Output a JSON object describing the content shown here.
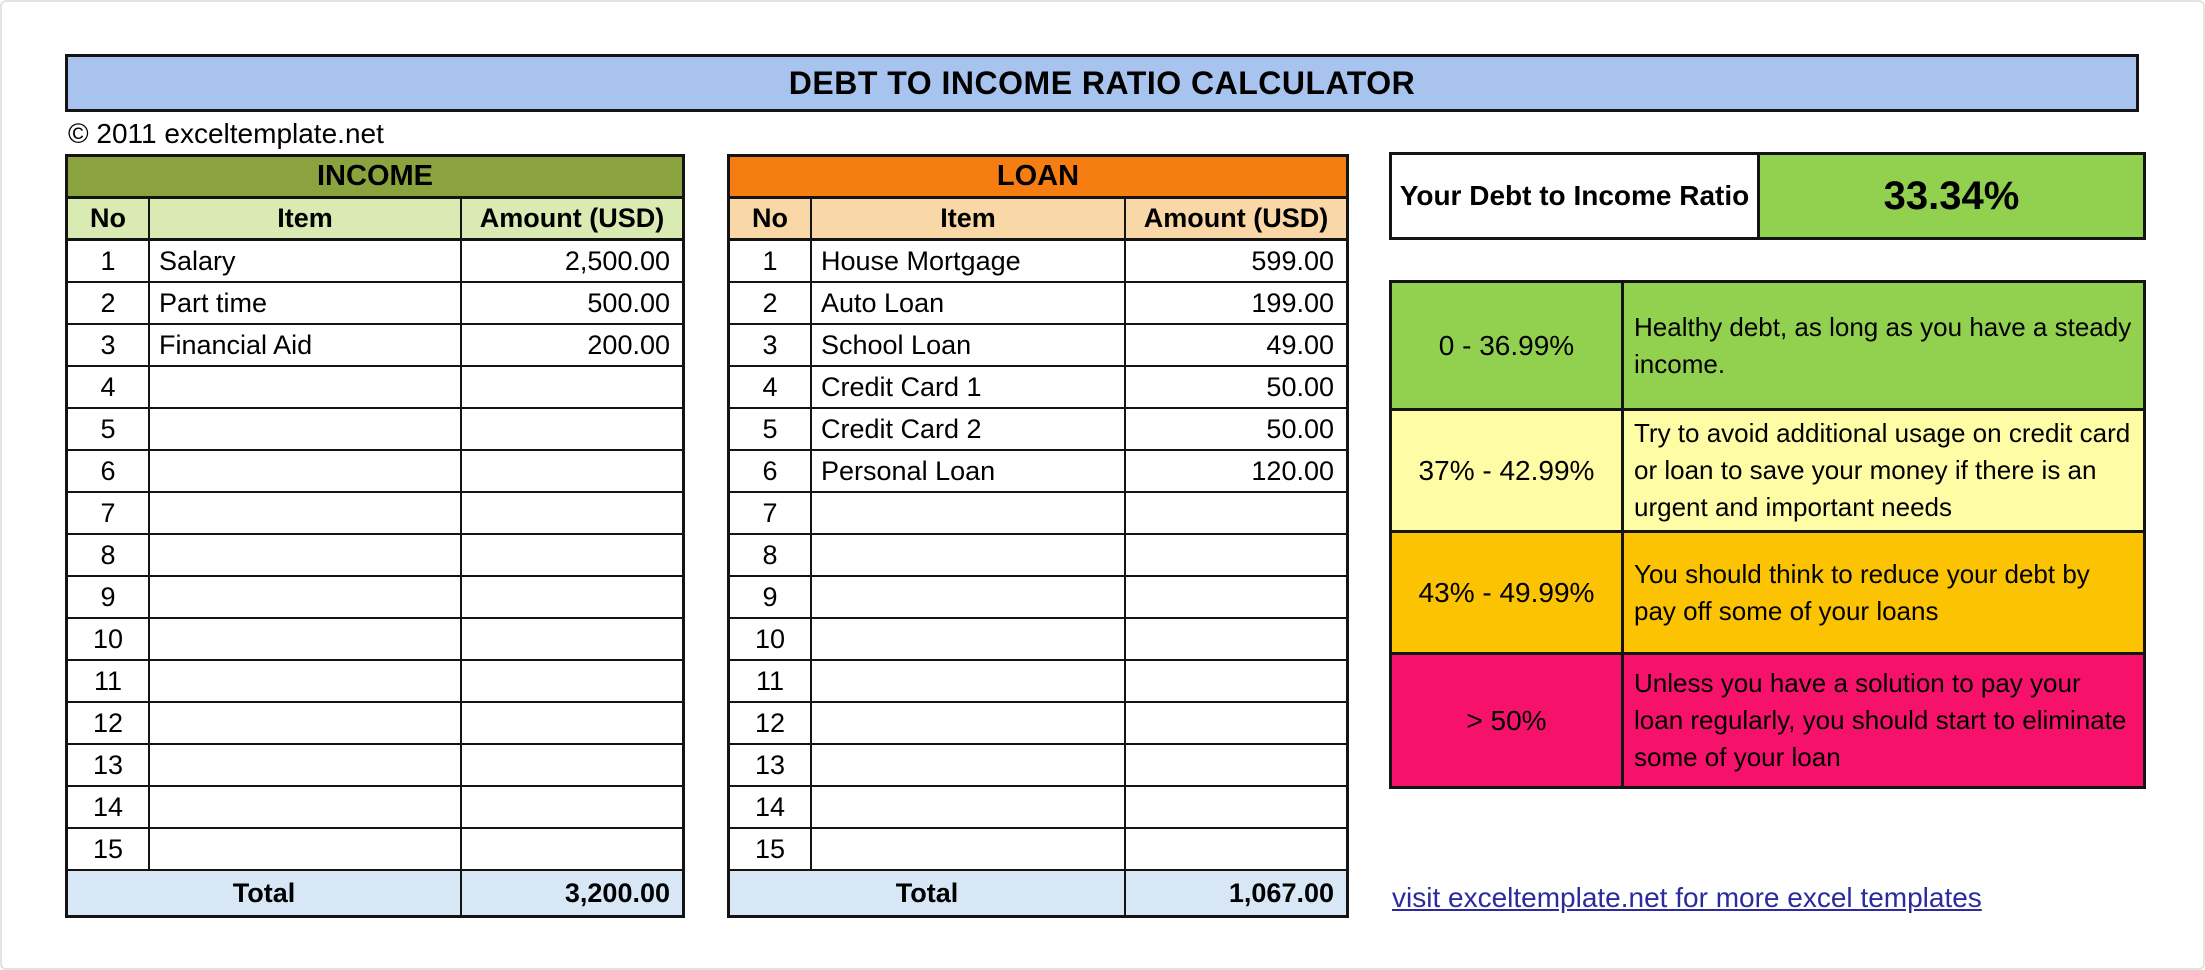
{
  "page": {
    "title": "DEBT TO INCOME RATIO CALCULATOR",
    "copyright": "© 2011 exceltemplate.net",
    "link_text": "visit exceltemplate.net for more excel templates"
  },
  "colors": {
    "title_bar_blue": "#A8C4EE",
    "income_header_green": "#8BA33E",
    "income_subheader_green": "#D9EAB2",
    "loan_header_orange": "#F57D11",
    "loan_subheader_peach": "#FAD7A6",
    "total_row_blue": "#D7E7F6",
    "ratio_green": "#92D050",
    "link_blue": "#2B2B9E"
  },
  "income_table": {
    "title": "INCOME",
    "columns": [
      "No",
      "Item",
      "Amount (USD)"
    ],
    "rows": [
      {
        "no": "1",
        "item": "Salary",
        "amount": "2,500.00"
      },
      {
        "no": "2",
        "item": "Part time",
        "amount": "500.00"
      },
      {
        "no": "3",
        "item": "Financial Aid",
        "amount": "200.00"
      },
      {
        "no": "4",
        "item": "",
        "amount": ""
      },
      {
        "no": "5",
        "item": "",
        "amount": ""
      },
      {
        "no": "6",
        "item": "",
        "amount": ""
      },
      {
        "no": "7",
        "item": "",
        "amount": ""
      },
      {
        "no": "8",
        "item": "",
        "amount": ""
      },
      {
        "no": "9",
        "item": "",
        "amount": ""
      },
      {
        "no": "10",
        "item": "",
        "amount": ""
      },
      {
        "no": "11",
        "item": "",
        "amount": ""
      },
      {
        "no": "12",
        "item": "",
        "amount": ""
      },
      {
        "no": "13",
        "item": "",
        "amount": ""
      },
      {
        "no": "14",
        "item": "",
        "amount": ""
      },
      {
        "no": "15",
        "item": "",
        "amount": ""
      }
    ],
    "total_label": "Total",
    "total_value": "3,200.00"
  },
  "loan_table": {
    "title": "LOAN",
    "columns": [
      "No",
      "Item",
      "Amount (USD)"
    ],
    "rows": [
      {
        "no": "1",
        "item": "House Mortgage",
        "amount": "599.00"
      },
      {
        "no": "2",
        "item": "Auto Loan",
        "amount": "199.00"
      },
      {
        "no": "3",
        "item": "School Loan",
        "amount": "49.00"
      },
      {
        "no": "4",
        "item": "Credit Card 1",
        "amount": "50.00"
      },
      {
        "no": "5",
        "item": "Credit Card 2",
        "amount": "50.00"
      },
      {
        "no": "6",
        "item": "Personal Loan",
        "amount": "120.00"
      },
      {
        "no": "7",
        "item": "",
        "amount": ""
      },
      {
        "no": "8",
        "item": "",
        "amount": ""
      },
      {
        "no": "9",
        "item": "",
        "amount": ""
      },
      {
        "no": "10",
        "item": "",
        "amount": ""
      },
      {
        "no": "11",
        "item": "",
        "amount": ""
      },
      {
        "no": "12",
        "item": "",
        "amount": ""
      },
      {
        "no": "13",
        "item": "",
        "amount": ""
      },
      {
        "no": "14",
        "item": "",
        "amount": ""
      },
      {
        "no": "15",
        "item": "",
        "amount": ""
      }
    ],
    "total_label": "Total",
    "total_value": "1,067.00"
  },
  "ratio": {
    "label": "Your Debt to Income Ratio",
    "value": "33.34%"
  },
  "legend": {
    "rows": [
      {
        "range": "0 - 36.99%",
        "text": "Healthy debt, as long as you have a steady income.",
        "color": "#92D050"
      },
      {
        "range": "37% - 42.99%",
        "text": "Try to avoid additional usage on credit card or loan to save your money if there is an urgent and important needs",
        "color": "#FEFCA5"
      },
      {
        "range": "43% - 49.99%",
        "text": "You should think to reduce your debt by pay off some of your loans",
        "color": "#FCC303"
      },
      {
        "range": "> 50%",
        "text": "Unless you have a solution to pay your loan regularly, you should start to eliminate some of your loan",
        "color": "#F6116B"
      }
    ]
  }
}
